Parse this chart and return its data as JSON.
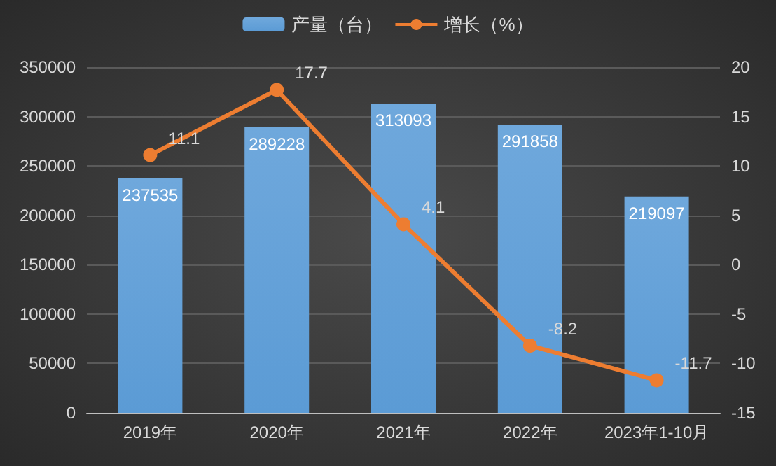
{
  "chart_data": {
    "type": "bar",
    "categories": [
      "2019年",
      "2020年",
      "2021年",
      "2022年",
      "2023年1-10月"
    ],
    "series": [
      {
        "name": "产量（台）",
        "color": "#5b9bd5",
        "values": [
          237535,
          289228,
          313093,
          291858,
          219097
        ]
      },
      {
        "name": "增长（%）",
        "type": "line",
        "axis": "y2",
        "color": "#ed7d31",
        "values": [
          11.1,
          17.7,
          4.1,
          -8.2,
          -11.7
        ]
      }
    ],
    "ylim": [
      0,
      350000
    ],
    "yticks": [
      0,
      50000,
      100000,
      150000,
      200000,
      250000,
      300000,
      350000
    ],
    "y2lim": [
      -15,
      20
    ],
    "y2ticks": [
      -15,
      -10,
      -5,
      0,
      5,
      10,
      15,
      20
    ],
    "grid": "y",
    "legend": "top",
    "marker": "circle",
    "data_labels": true
  }
}
